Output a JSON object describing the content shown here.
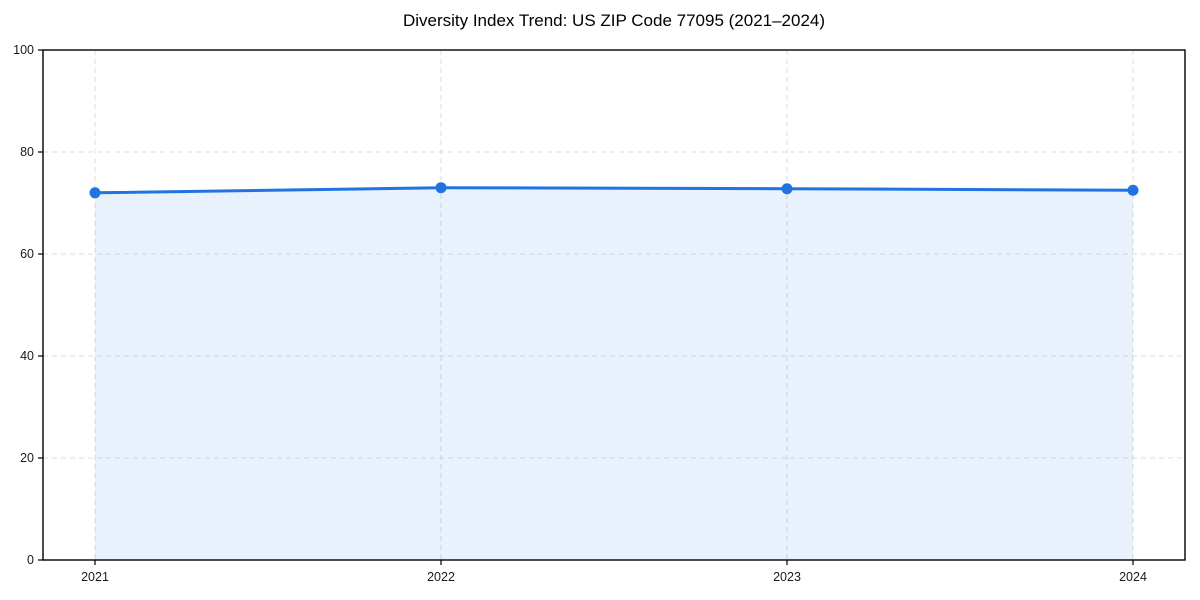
{
  "chart_data": {
    "type": "area",
    "title": "Diversity Index Trend: US ZIP Code 77095 (2021–2024)",
    "x": [
      2021,
      2022,
      2023,
      2024
    ],
    "values": [
      72,
      73,
      72.8,
      72.5
    ],
    "xticks": [
      "2021",
      "2022",
      "2023",
      "2024"
    ],
    "yticks": [
      0,
      20,
      40,
      60,
      80,
      100
    ],
    "ylim": [
      0,
      100
    ],
    "xlabel": "",
    "ylabel": "",
    "grid": "dashed, horizontal and vertical",
    "legend": "none",
    "marker": "circle",
    "colors": {
      "line": "#2173e2",
      "marker": "#2173e2",
      "fill": "rgba(33, 115, 226, 0.10)",
      "grid": "#dcdcdc",
      "axis": "#000000",
      "text": "#1a1a1a",
      "background": "#ffffff"
    }
  }
}
